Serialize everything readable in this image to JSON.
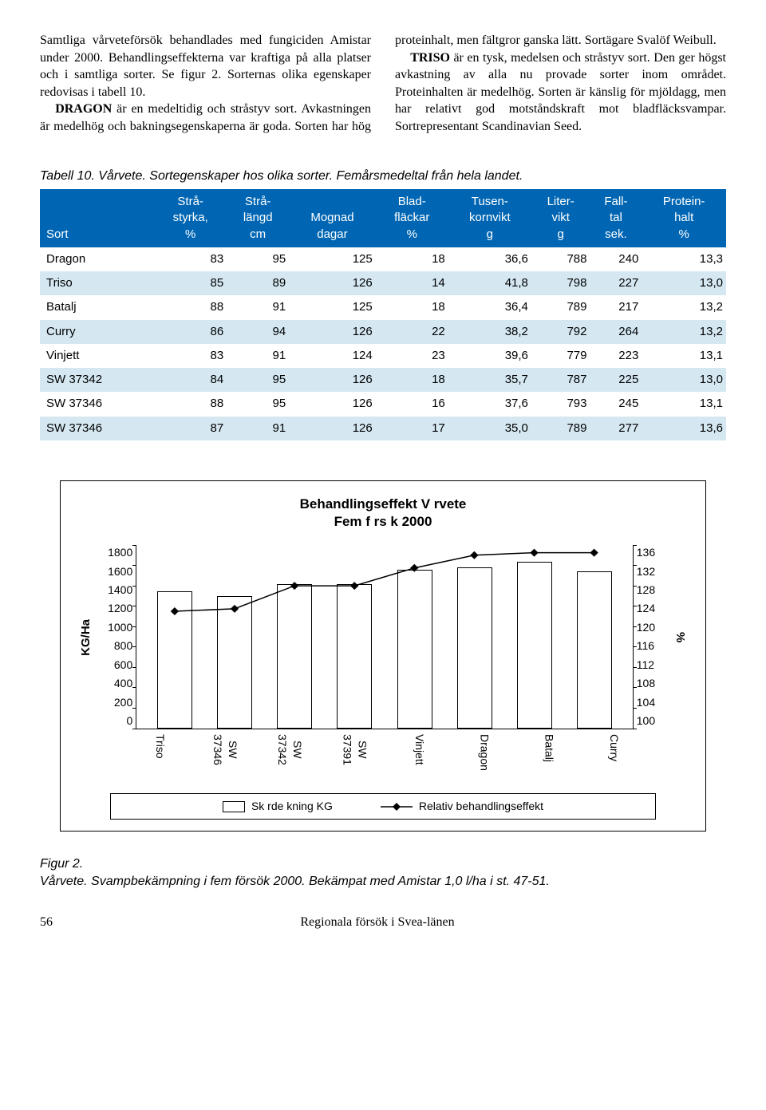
{
  "paragraphs": {
    "p1a": "Samtliga vårveteförsök behandlades med fungiciden Amistar under 2000. Behandlingseffekterna var kraftiga på alla platser och i samtliga sorter. Se figur 2. Sorternas olika egenskaper redovisas i tabell 10.",
    "p1b_label": "DRAGON",
    "p1b": " är en medeltidig och stråstyv sort. Avkastningen är medelhög och bakningsegenskaperna är goda. Sorten har hög proteinhalt, men fältgror ganska lätt. Sortägare Svalöf Weibull.",
    "p2_label": "TRISO",
    "p2": " är en tysk, medelsen och stråstyv sort. Den ger högst avkastning av alla nu provade sorter inom området. Proteinhalten är medelhög. Sorten är känslig för mjöldagg, men har relativt god motståndskraft mot bladfläcksvampar. Sortrepresentant Scandinavian Seed."
  },
  "table": {
    "caption": "Tabell 10. Vårvete. Sortegenskaper hos olika sorter. Femårsmedeltal från hela landet.",
    "columns": [
      "Sort",
      "Strå-\nstyrka,\n%",
      "Strå-\nlängd\ncm",
      "Mognad\ndagar",
      "Blad-\nfläckar\n%",
      "Tusen-\nkornvikt\ng",
      "Liter-\nvikt\ng",
      "Fall-\ntal\nsek.",
      "Protein-\nhalt\n%"
    ],
    "rows": [
      [
        "Dragon",
        "83",
        "95",
        "125",
        "18",
        "36,6",
        "788",
        "240",
        "13,3"
      ],
      [
        "Triso",
        "85",
        "89",
        "126",
        "14",
        "41,8",
        "798",
        "227",
        "13,0"
      ],
      [
        "Batalj",
        "88",
        "91",
        "125",
        "18",
        "36,4",
        "789",
        "217",
        "13,2"
      ],
      [
        "Curry",
        "86",
        "94",
        "126",
        "22",
        "38,2",
        "792",
        "264",
        "13,2"
      ],
      [
        "Vinjett",
        "83",
        "91",
        "124",
        "23",
        "39,6",
        "779",
        "223",
        "13,1"
      ],
      [
        "SW 37342",
        "84",
        "95",
        "126",
        "18",
        "35,7",
        "787",
        "225",
        "13,0"
      ],
      [
        "SW 37346",
        "88",
        "95",
        "126",
        "16",
        "37,6",
        "793",
        "245",
        "13,1"
      ],
      [
        "SW 37346",
        "87",
        "91",
        "126",
        "17",
        "35,0",
        "789",
        "277",
        "13,6"
      ]
    ],
    "stripe_rows": [
      1,
      3,
      5,
      7
    ],
    "header_bg": "#0066b3",
    "stripe_bg": "#d5e8f2"
  },
  "chart": {
    "title_line1": "Behandlingseffekt V rvete",
    "title_line2": "Fem f rs k 2000",
    "y_left_label": "KG/Ha",
    "y_right_label": "%",
    "y_left_ticks": [
      "1800",
      "1600",
      "1400",
      "1200",
      "1000",
      "800",
      "600",
      "400",
      "200",
      "0"
    ],
    "y_right_ticks": [
      "136",
      "132",
      "128",
      "124",
      "120",
      "116",
      "112",
      "108",
      "104",
      "100"
    ],
    "y_left_min": 0,
    "y_left_max": 1800,
    "y_right_min": 100,
    "y_right_max": 136,
    "categories": [
      "Triso",
      "SW\n37346",
      "SW\n37342",
      "SW\n37391",
      "Vinjett",
      "Dragon",
      "Batalj",
      "Curry"
    ],
    "bar_values": [
      1350,
      1300,
      1420,
      1420,
      1560,
      1580,
      1640,
      1540
    ],
    "line_values": [
      123,
      123.5,
      128,
      128,
      131.5,
      134,
      134.5,
      134.5
    ],
    "bar_fill": "#ffffff",
    "bar_stroke": "#000000",
    "line_color": "#000000",
    "marker": "diamond",
    "legend": {
      "bar": "Sk rde kning KG",
      "line": "Relativ behandlingseffekt"
    }
  },
  "figure_caption": {
    "l1": "Figur 2.",
    "l2": "Vårvete. Svampbekämpning i fem försök 2000. Bekämpat med Amistar 1,0 l/ha i st. 47-51."
  },
  "footer": {
    "page": "56",
    "title": "Regionala försök i Svea-länen"
  }
}
